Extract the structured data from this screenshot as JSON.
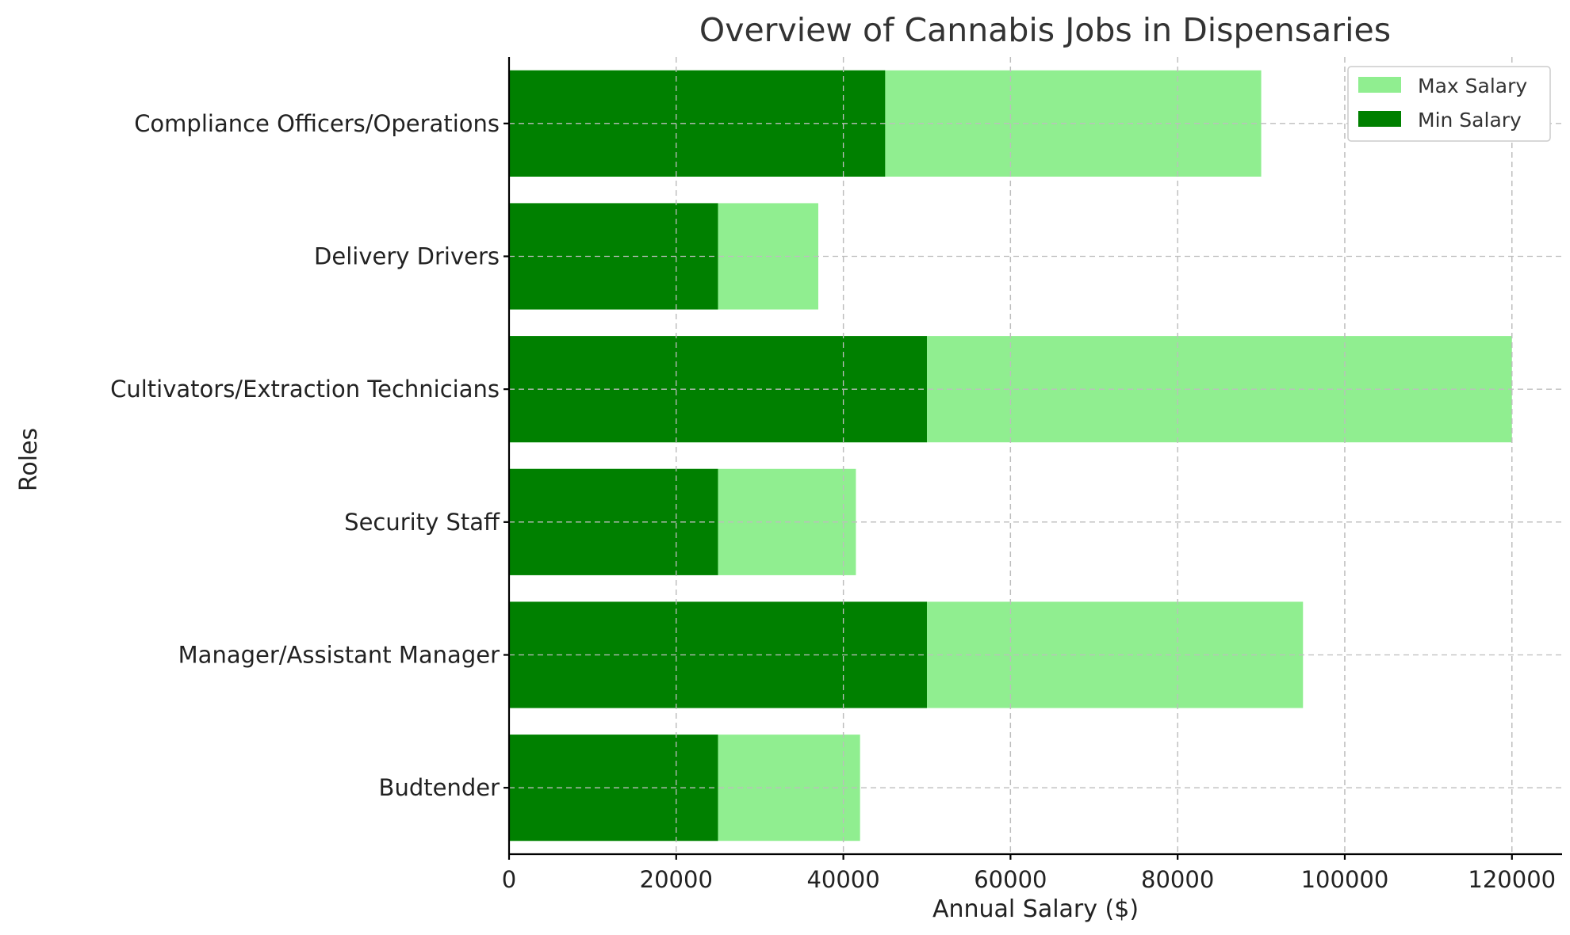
{
  "chart_data": {
    "type": "bar",
    "orientation": "horizontal",
    "stacking": "overlay",
    "title": "Overview of Cannabis Jobs in Dispensaries",
    "xlabel": "Annual Salary ($)",
    "ylabel": "Roles",
    "categories": [
      "Budtender",
      "Manager/Assistant Manager",
      "Security Staff",
      "Cultivators/Extraction Technicians",
      "Delivery Drivers",
      "Compliance Officers/Operations"
    ],
    "series": [
      {
        "name": "Max Salary",
        "color": "#90ee90",
        "values": [
          42000,
          95000,
          41500,
          120000,
          37000,
          90000
        ]
      },
      {
        "name": "Min Salary",
        "color": "#008000",
        "values": [
          25000,
          50000,
          25000,
          50000,
          25000,
          45000
        ]
      }
    ],
    "xlim": [
      0,
      126000
    ],
    "xticks": [
      0,
      20000,
      40000,
      60000,
      80000,
      100000,
      120000
    ],
    "xtick_labels": [
      "0",
      "20000",
      "40000",
      "60000",
      "80000",
      "100000",
      "120000"
    ],
    "grid": true,
    "legend_position": "top-right"
  }
}
